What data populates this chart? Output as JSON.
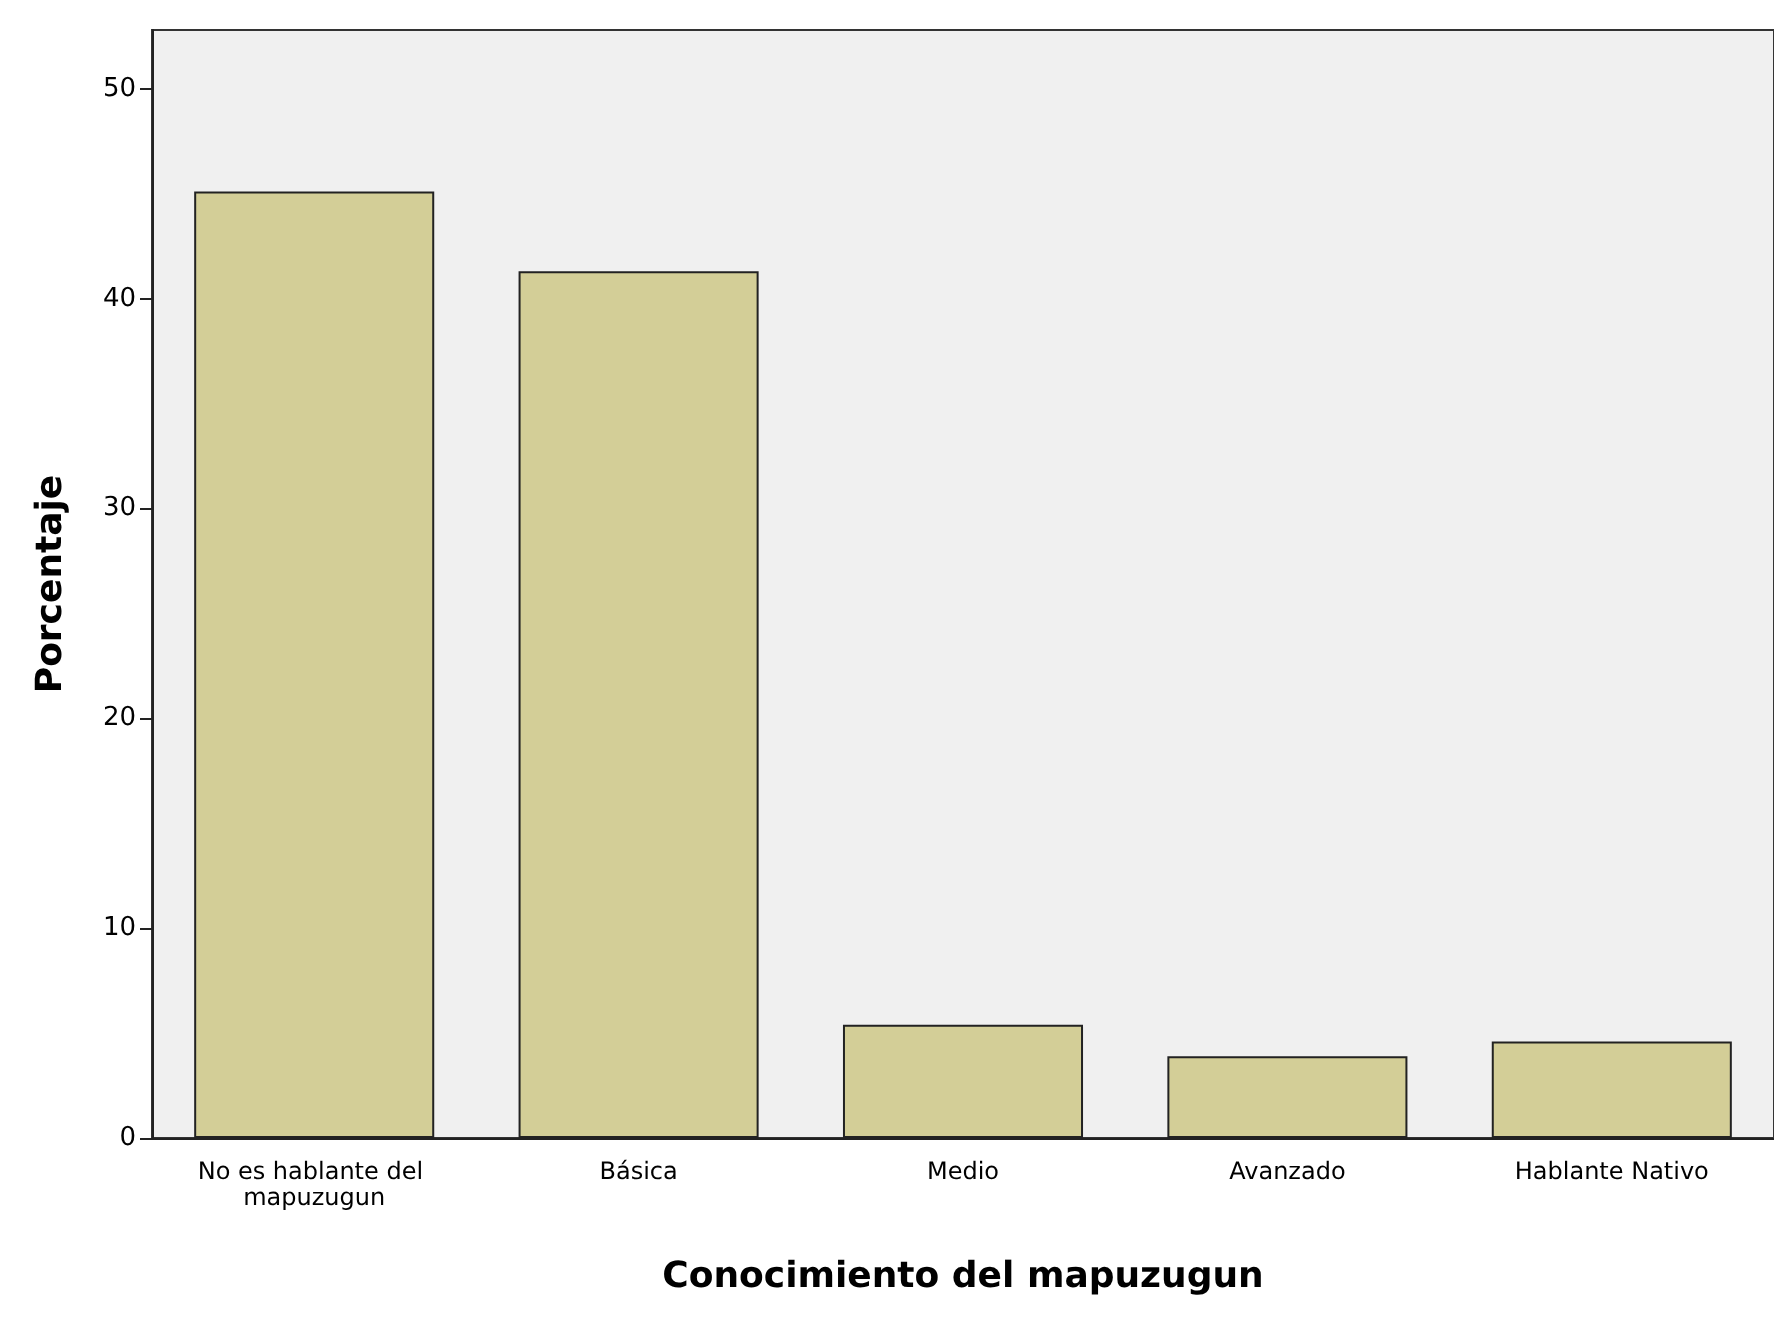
{
  "chart_data": {
    "type": "bar",
    "xlabel": "Conocimiento del mapuzugun",
    "ylabel": "Porcentaje",
    "categories": [
      "No es hablante del mapuzugun",
      "Básica",
      "Medio",
      "Avanzado",
      "Hablante Nativo"
    ],
    "values": [
      45.1,
      41.3,
      5.4,
      3.9,
      4.6
    ],
    "color": "#d3ce97",
    "ylim": [
      0,
      52.8
    ],
    "yticks": [
      0,
      10,
      20,
      30,
      40,
      50
    ],
    "grid": false
  }
}
